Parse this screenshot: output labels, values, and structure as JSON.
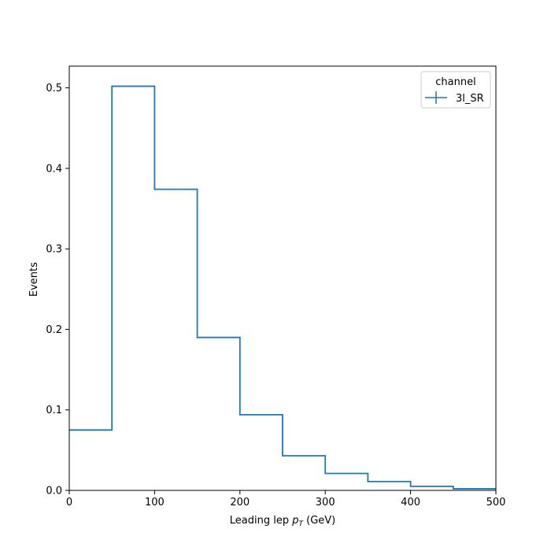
{
  "chart_data": {
    "type": "step",
    "bin_edges": [
      0,
      50,
      100,
      150,
      200,
      250,
      300,
      350,
      400,
      450,
      500
    ],
    "values": [
      0.075,
      0.502,
      0.374,
      0.19,
      0.094,
      0.043,
      0.021,
      0.011,
      0.005,
      0.002
    ],
    "xlabel_prefix": "Leading lep ",
    "xlabel_var": "p",
    "xlabel_sub": "T",
    "xlabel_suffix": " (GeV)",
    "ylabel": "Events",
    "xlim": [
      0,
      500
    ],
    "ylim": [
      0,
      0.527
    ],
    "xticks": [
      0,
      100,
      200,
      300,
      400,
      500
    ],
    "xtick_labels": [
      "0",
      "100",
      "200",
      "300",
      "400",
      "500"
    ],
    "yticks": [
      0,
      0.1,
      0.2,
      0.3,
      0.4,
      0.5
    ],
    "ytick_labels": [
      "0.0",
      "0.1",
      "0.2",
      "0.3",
      "0.4",
      "0.5"
    ],
    "grid": false,
    "legend": {
      "title": "channel",
      "placement": "top-right",
      "entries": [
        {
          "name": "3l_SR",
          "color": "#1f77b4"
        }
      ]
    },
    "series_color": "#1f77b4"
  }
}
